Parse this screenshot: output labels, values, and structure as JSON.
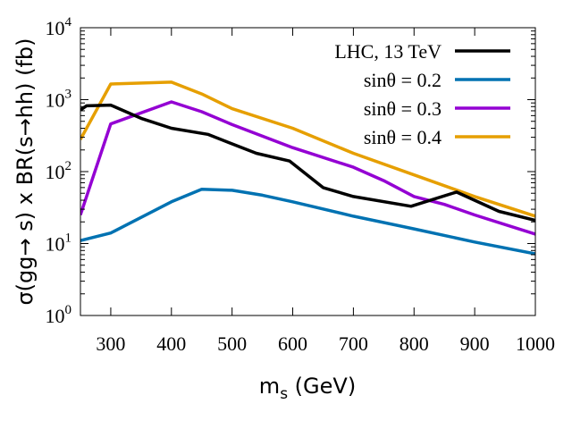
{
  "chart_data": {
    "type": "line",
    "title": "",
    "xlabel": "m",
    "xlabel_sub": "s",
    "xlabel_unit": " (GeV)",
    "ylabel": "σ(gg→ s) x BR(s→hh) (fb)",
    "xlim": [
      250,
      1000
    ],
    "ylim": [
      1,
      10000
    ],
    "yscale": "log",
    "x_ticks": [
      300,
      400,
      500,
      600,
      700,
      800,
      900,
      1000
    ],
    "x_tick_labels": [
      "300",
      "400",
      "500",
      "600",
      "700",
      "800",
      "900",
      "1000"
    ],
    "y_ticks": [
      1,
      10,
      100,
      1000,
      10000
    ],
    "y_tick_labels": [
      {
        "base": "10",
        "exp": "0"
      },
      {
        "base": "10",
        "exp": "1"
      },
      {
        "base": "10",
        "exp": "2"
      },
      {
        "base": "10",
        "exp": "3"
      },
      {
        "base": "10",
        "exp": "4"
      }
    ],
    "legend_position": "top-right",
    "series": [
      {
        "name": "LHC, 13 TeV",
        "color": "#000000",
        "x": [
          250,
          260,
          300,
          350,
          400,
          460,
          540,
          595,
          650,
          700,
          795,
          870,
          940,
          1000
        ],
        "y": [
          720,
          820,
          840,
          550,
          400,
          330,
          180,
          140,
          60,
          45,
          33,
          52,
          28,
          21
        ]
      },
      {
        "name": "sinθ = 0.2",
        "color": "#0072b2",
        "x": [
          250,
          300,
          400,
          450,
          500,
          550,
          600,
          700,
          800,
          900,
          1000
        ],
        "y": [
          11,
          14,
          38,
          57,
          55,
          47,
          38,
          24,
          16,
          10.5,
          7.2
        ]
      },
      {
        "name": "sinθ = 0.3",
        "color": "#9400d3",
        "x": [
          250,
          300,
          400,
          450,
          500,
          600,
          700,
          750,
          800,
          850,
          900,
          1000
        ],
        "y": [
          25,
          460,
          930,
          680,
          450,
          215,
          115,
          75,
          45,
          35,
          25,
          13.5
        ]
      },
      {
        "name": "sinθ = 0.4",
        "color": "#e69f00",
        "x": [
          250,
          300,
          400,
          450,
          500,
          600,
          700,
          800,
          900,
          1000
        ],
        "y": [
          280,
          1650,
          1750,
          1200,
          750,
          400,
          180,
          90,
          45,
          24
        ]
      }
    ]
  }
}
